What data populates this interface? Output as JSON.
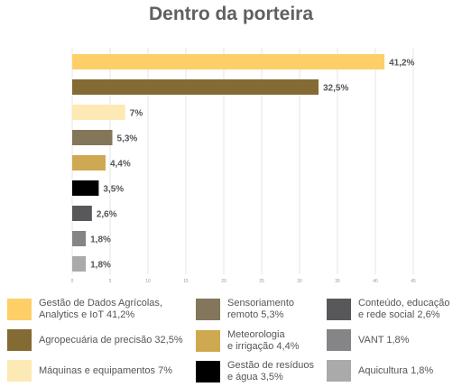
{
  "chart_data": {
    "type": "bar",
    "orientation": "horizontal",
    "title": "Dentro da porteira",
    "categories": [
      "Gestão de Dados Agrícolas,\nAnalytics e IoT 41,2%",
      "Agropecuária de precisão 32,5%",
      "Máquinas e equipamentos 7%",
      "Sensoriamento\nremoto 5,3%",
      "Meteorologia\ne irrigação 4,4%",
      "Gestão de resíduos\ne água 3,5%",
      "Conteúdo, educação\ne rede social 2,6%",
      "VANT 1,8%",
      "Aquicultura 1,8%"
    ],
    "values": [
      41.2,
      32.5,
      7,
      5.3,
      4.4,
      3.5,
      2.6,
      1.8,
      1.8
    ],
    "value_labels": [
      "41,2%",
      "32,5%",
      "7%",
      "5,3%",
      "4,4%",
      "3,5%",
      "2,6%",
      "1,8%",
      "1,8%"
    ],
    "colors": [
      "#FDCF66",
      "#836B33",
      "#FDE9B3",
      "#84765A",
      "#CFA852",
      "#000000",
      "#58585A",
      "#858587",
      "#AAAAAA"
    ],
    "xlim": [
      0,
      45
    ],
    "xticks": [
      0,
      5,
      10,
      15,
      20,
      25,
      30,
      35,
      40,
      45
    ],
    "grid": true,
    "legend_position": "bottom"
  }
}
